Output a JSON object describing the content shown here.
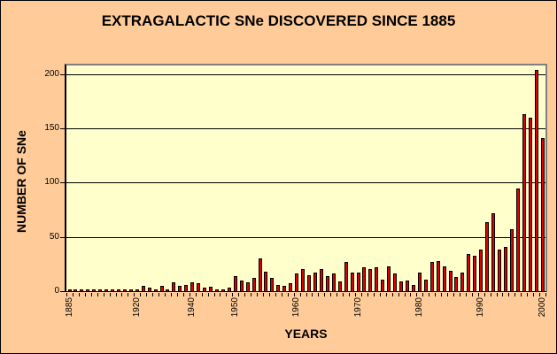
{
  "title": "EXTRAGALACTIC SNe DISCOVERED SINCE 1885",
  "colors": {
    "background": "#FFCC99",
    "plot_background": "#FFFFCC",
    "bar_fill": "#E00000",
    "bar_border": "#000000",
    "gridline": "#000000",
    "plot_border": "#808080",
    "axis": "#000000"
  },
  "chart_data": {
    "type": "bar",
    "title": "EXTRAGALACTIC SNe DISCOVERED SINCE 1885",
    "xlabel": "YEARS",
    "ylabel": "NUMBER OF SNe",
    "ylim": [
      0,
      200
    ],
    "y_ticks": [
      0,
      50,
      100,
      150,
      200
    ],
    "grid": "horizontal",
    "legend": "none",
    "x_labeled_ticks": [
      "1885",
      "1920",
      "1940",
      "1950",
      "1960",
      "1970",
      "1980",
      "1990",
      "2000"
    ],
    "categories": [
      "1885",
      "1895",
      "1898",
      "1901",
      "1907",
      "1909",
      "1912",
      "1914",
      "1915",
      "1917",
      "1919",
      "1920",
      "1921",
      "1923",
      "1926",
      "1935",
      "1936",
      "1937",
      "1938",
      "1939",
      "1940",
      "1941",
      "1943",
      "1945",
      "1946",
      "1948",
      "1949",
      "1950",
      "1951",
      "1952",
      "1953",
      "1954",
      "1955",
      "1956",
      "1957",
      "1958",
      "1959",
      "1960",
      "1961",
      "1962",
      "1963",
      "1964",
      "1965",
      "1966",
      "1967",
      "1968",
      "1969",
      "1970",
      "1971",
      "1972",
      "1973",
      "1974",
      "1975",
      "1976",
      "1977",
      "1978",
      "1979",
      "1980",
      "1981",
      "1982",
      "1983",
      "1984",
      "1985",
      "1986",
      "1987",
      "1988",
      "1989",
      "1990",
      "1991",
      "1992",
      "1993",
      "1994",
      "1995",
      "1996",
      "1997",
      "1998",
      "1999",
      "2000"
    ],
    "values": [
      1,
      1,
      1,
      1,
      2,
      1,
      1,
      1,
      2,
      2,
      2,
      2,
      5,
      3,
      2,
      5,
      2,
      8,
      5,
      6,
      8,
      7,
      3,
      4,
      2,
      1,
      3,
      14,
      10,
      8,
      12,
      30,
      18,
      12,
      6,
      5,
      7,
      16,
      20,
      15,
      17,
      20,
      14,
      16,
      9,
      27,
      17,
      17,
      22,
      20,
      22,
      11,
      23,
      16,
      9,
      10,
      6,
      17,
      11,
      27,
      28,
      23,
      19,
      13,
      17,
      34,
      33,
      38,
      64,
      72,
      38,
      41,
      57,
      95,
      163,
      160,
      204,
      141
    ]
  }
}
